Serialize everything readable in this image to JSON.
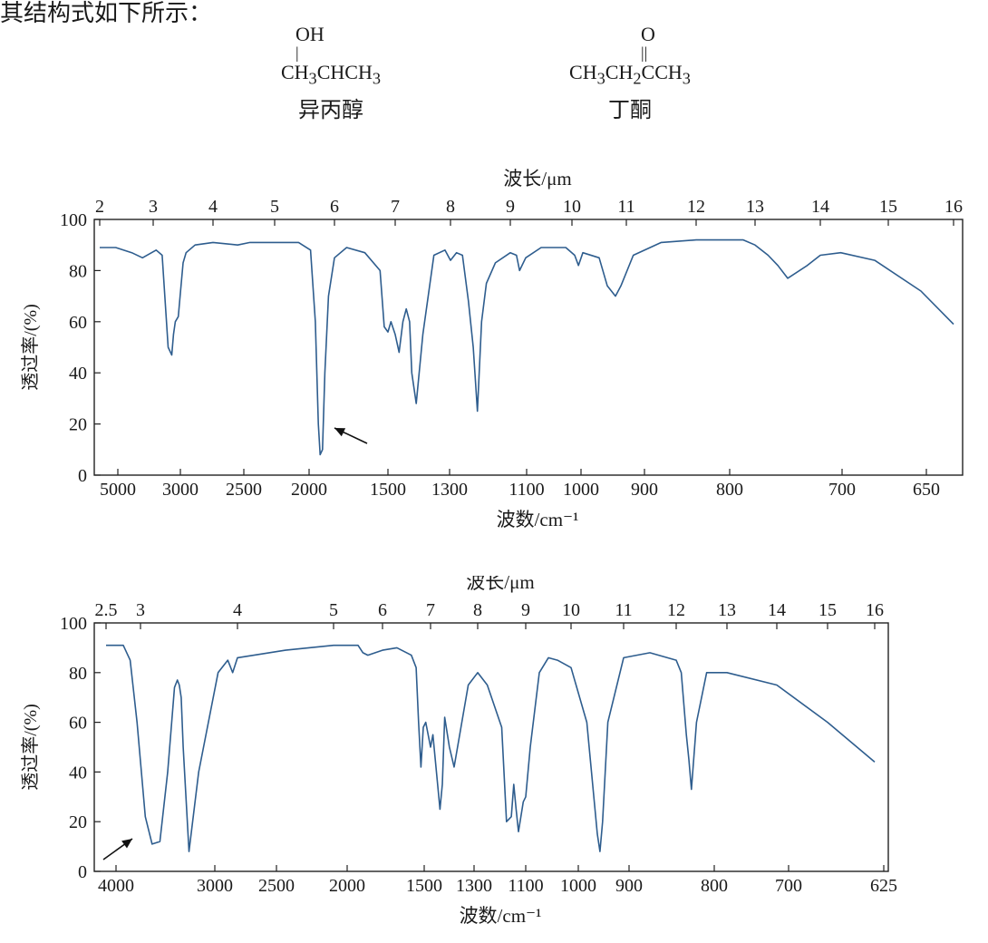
{
  "intro_text": "其结构式如下所示：",
  "molecules": [
    {
      "top_group": "OH",
      "bond": "|",
      "formula_html": "CH<sub>3</sub>CHCH<sub>3</sub>",
      "name": "异丙醇"
    },
    {
      "top_group": "O",
      "bond": "||",
      "formula_html": "CH<sub>3</sub>CH<sub>2</sub>CCH<sub>3</sub>",
      "name": "丁酮"
    }
  ],
  "chart_data": [
    {
      "type": "line",
      "top_axis_label": "波长/μm",
      "xlabel": "波数/cm⁻¹",
      "ylabel": "透过率/(%)",
      "ylim": [
        0,
        100
      ],
      "y_ticks": [
        "0",
        "20",
        "40",
        "60",
        "80",
        "100"
      ],
      "top_ticks": [
        "2",
        "3",
        "4",
        "5",
        "6",
        "7",
        "8",
        "9",
        "10",
        "11",
        "12",
        "13",
        "14",
        "15",
        "16"
      ],
      "bottom_ticks": [
        "5000",
        "3000",
        "2500",
        "2000",
        "1500",
        "1300",
        "1100",
        "1000",
        "900",
        "800",
        "700",
        "650"
      ],
      "series": [
        {
          "x_um": [
            2.0,
            2.3,
            2.6,
            2.8,
            3.05,
            3.15,
            3.25,
            3.31,
            3.34,
            3.37,
            3.42,
            3.45,
            3.5,
            3.55,
            3.7,
            4.0,
            4.4,
            4.6,
            4.8,
            5.0,
            5.4,
            5.6,
            5.68,
            5.73,
            5.76,
            5.8,
            5.84,
            5.9,
            6.0,
            6.2,
            6.5,
            6.75,
            6.82,
            6.88,
            6.93,
            7.0,
            7.07,
            7.14,
            7.2,
            7.26,
            7.3,
            7.38,
            7.5,
            7.7,
            7.9,
            8.0,
            8.1,
            8.2,
            8.3,
            8.38,
            8.45,
            8.52,
            8.6,
            8.75,
            9.0,
            9.1,
            9.15,
            9.25,
            9.5,
            9.9,
            10.05,
            10.12,
            10.2,
            10.5,
            10.65,
            10.8,
            10.9,
            11.1,
            11.5,
            12.0,
            12.8,
            13.0,
            13.2,
            13.35,
            13.5,
            13.8,
            14.0,
            14.3,
            14.8,
            15.5,
            16.0
          ],
          "y": [
            89,
            89,
            87,
            85,
            88,
            86,
            50,
            47,
            55,
            60,
            62,
            70,
            83,
            87,
            90,
            91,
            90,
            91,
            91,
            91,
            91,
            88,
            60,
            20,
            8,
            10,
            40,
            70,
            85,
            89,
            87,
            80,
            58,
            56,
            60,
            55,
            48,
            60,
            65,
            60,
            40,
            28,
            55,
            86,
            88,
            84,
            87,
            86,
            68,
            50,
            25,
            60,
            75,
            83,
            87,
            86,
            80,
            85,
            89,
            89,
            86,
            82,
            87,
            85,
            74,
            70,
            74,
            86,
            91,
            92,
            92,
            90,
            86,
            82,
            77,
            82,
            86,
            87,
            84,
            72,
            59
          ]
        }
      ]
    },
    {
      "type": "line",
      "top_axis_label": "波长/μm",
      "xlabel": "波数/cm⁻¹",
      "ylabel": "透过率/(%)",
      "ylim": [
        0,
        100
      ],
      "y_ticks": [
        "0",
        "20",
        "40",
        "60",
        "80",
        "100"
      ],
      "top_ticks": [
        "2.5",
        "3",
        "4",
        "5",
        "6",
        "7",
        "8",
        "9",
        "10",
        "11",
        "12",
        "13",
        "14",
        "15",
        "16"
      ],
      "bottom_ticks": [
        "4000",
        "3000",
        "2500",
        "2000",
        "1500",
        "1300",
        "1100",
        "1000",
        "900",
        "800",
        "700",
        "625"
      ],
      "series": [
        {
          "x_um": [
            2.5,
            2.75,
            2.85,
            2.95,
            3.05,
            3.12,
            3.2,
            3.28,
            3.35,
            3.38,
            3.4,
            3.42,
            3.44,
            3.5,
            3.6,
            3.8,
            3.9,
            3.95,
            4.0,
            4.5,
            5.0,
            5.5,
            5.6,
            5.7,
            5.85,
            6.0,
            6.3,
            6.6,
            6.7,
            6.75,
            6.8,
            6.85,
            6.9,
            7.0,
            7.05,
            7.1,
            7.2,
            7.25,
            7.3,
            7.4,
            7.5,
            7.8,
            8.0,
            8.2,
            8.5,
            8.6,
            8.7,
            8.75,
            8.8,
            8.85,
            8.95,
            9.0,
            9.1,
            9.3,
            9.5,
            9.7,
            10.0,
            10.3,
            10.5,
            10.55,
            10.6,
            10.7,
            11.0,
            11.5,
            12.0,
            12.1,
            12.2,
            12.25,
            12.3,
            12.4,
            12.6,
            13.0,
            14.0,
            15.0,
            16.0
          ],
          "y": [
            91,
            91,
            85,
            60,
            22,
            11,
            12,
            40,
            74,
            77,
            75,
            70,
            50,
            8,
            40,
            80,
            85,
            80,
            86,
            89,
            91,
            91,
            88,
            87,
            88,
            89,
            90,
            87,
            82,
            60,
            42,
            58,
            60,
            50,
            55,
            45,
            25,
            35,
            62,
            50,
            42,
            75,
            80,
            75,
            58,
            20,
            22,
            35,
            25,
            16,
            28,
            30,
            50,
            80,
            86,
            85,
            82,
            60,
            15,
            8,
            20,
            60,
            86,
            88,
            85,
            80,
            55,
            45,
            33,
            60,
            80,
            80,
            75,
            60,
            44
          ]
        }
      ]
    }
  ]
}
